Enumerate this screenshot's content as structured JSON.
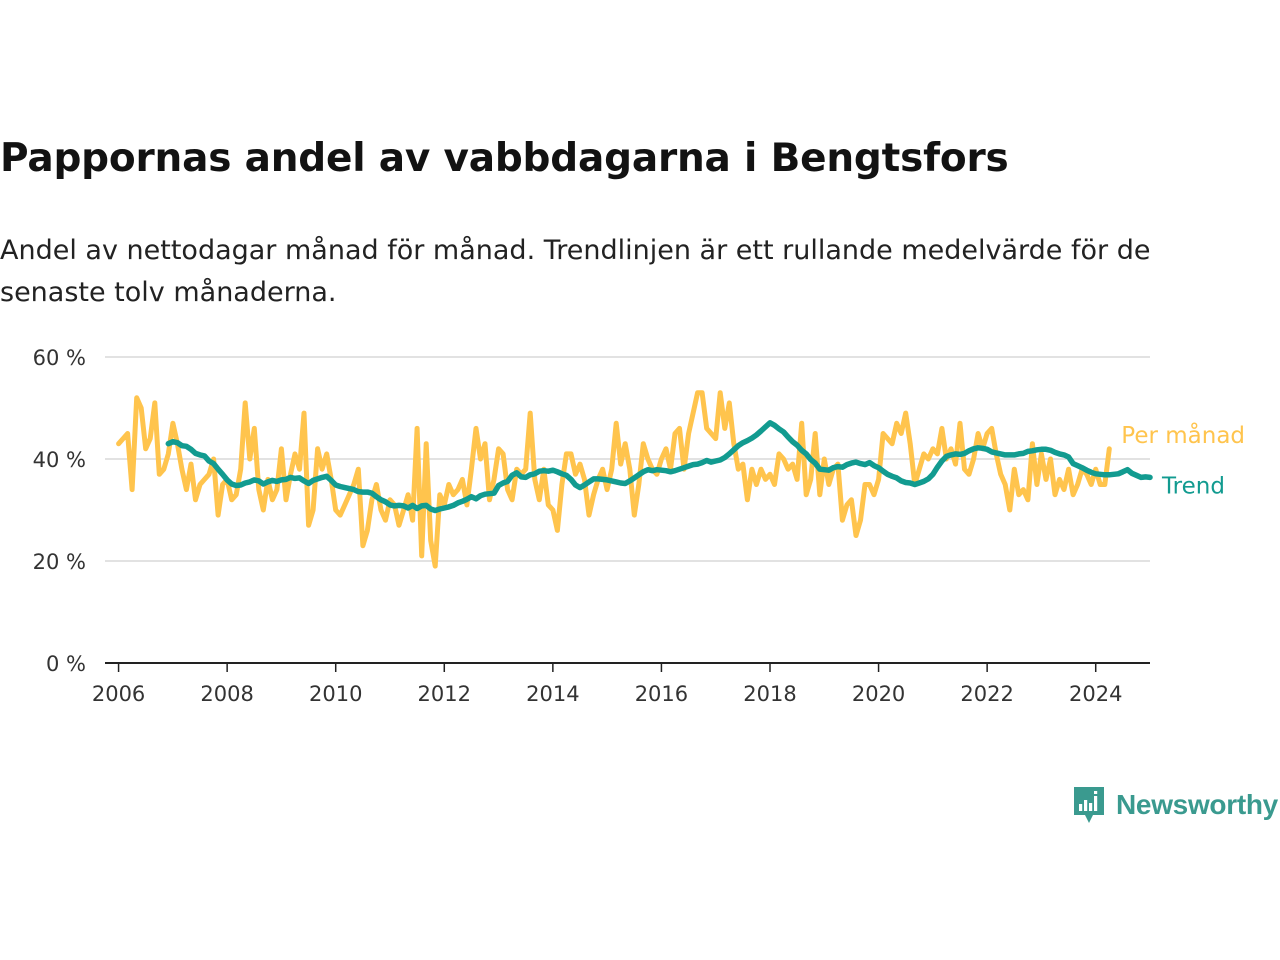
{
  "title": "Pappornas andel av vabbdagarna i Bengtsfors",
  "subtitle": "Andel av nettodagar månad för månad. Trendlinjen är ett rullande medelvärde för de senaste tolv månaderna.",
  "brand": {
    "name": "Newsworthy",
    "icon": "newsworthy-logo-icon",
    "color": "#3a9a8f"
  },
  "colors": {
    "per_month": "#ffc44d",
    "trend": "#129b90",
    "grid": "#d9d9d9",
    "axis": "#222222"
  },
  "chart_data": {
    "type": "line",
    "title": "Pappornas andel av vabbdagarna i Bengtsfors",
    "subtitle": "Andel av nettodagar månad för månad. Trendlinjen är ett rullande medelvärde för de senaste tolv månaderna.",
    "xlabel": "",
    "ylabel": "",
    "x_range": [
      "2005-10",
      "2025-01"
    ],
    "ylim": [
      0,
      60
    ],
    "y_ticks": [
      {
        "value": 0,
        "label": "0 %"
      },
      {
        "value": 20,
        "label": "20 %"
      },
      {
        "value": 40,
        "label": "40 %"
      },
      {
        "value": 60,
        "label": "60 %"
      }
    ],
    "x_ticks": [
      "2006",
      "2008",
      "2010",
      "2012",
      "2014",
      "2016",
      "2018",
      "2020",
      "2022",
      "2024"
    ],
    "grid": true,
    "legend": "direct labels at right end of lines",
    "series": [
      {
        "name": "Per månad",
        "start": "2006-01",
        "step": "month",
        "values": [
          43,
          44,
          45,
          34,
          52,
          50,
          42,
          44,
          51,
          37,
          38,
          41,
          47,
          43,
          38,
          34,
          39,
          32,
          35,
          36,
          37,
          40,
          29,
          35,
          36,
          32,
          33,
          38,
          51,
          40,
          46,
          34,
          30,
          36,
          32,
          34,
          42,
          32,
          37,
          41,
          38,
          49,
          27,
          30,
          42,
          38,
          41,
          36,
          30,
          29,
          31,
          33,
          35,
          38,
          23,
          26,
          32,
          35,
          30,
          28,
          32,
          31,
          27,
          30,
          33,
          28,
          46,
          21,
          43,
          24,
          19,
          33,
          31,
          35,
          33,
          34,
          36,
          31,
          38,
          46,
          40,
          43,
          32,
          36,
          42,
          41,
          34,
          32,
          38,
          37,
          38,
          49,
          36,
          32,
          38,
          31,
          30,
          26,
          35,
          41,
          41,
          37,
          39,
          36,
          29,
          33,
          36,
          38,
          34,
          38,
          47,
          39,
          43,
          38,
          29,
          35,
          43,
          40,
          38,
          37,
          40,
          42,
          38,
          45,
          46,
          38,
          45,
          49,
          53,
          53,
          46,
          45,
          44,
          53,
          46,
          51,
          43,
          38,
          39,
          32,
          38,
          35,
          38,
          36,
          37,
          35,
          41,
          40,
          38,
          39,
          36,
          47,
          33,
          36,
          45,
          33,
          40,
          35,
          38,
          39,
          28,
          31,
          32,
          25,
          28,
          35,
          35,
          33,
          36,
          45,
          44,
          43,
          47,
          45,
          49,
          43,
          35,
          38,
          41,
          40,
          42,
          41,
          46,
          40,
          42,
          39,
          47,
          38,
          37,
          40,
          45,
          42,
          45,
          46,
          41,
          37,
          35,
          30,
          38,
          33,
          34,
          32,
          43,
          35,
          41,
          36,
          40,
          33,
          36,
          34,
          38,
          33,
          35,
          38,
          37,
          35,
          38,
          35,
          35,
          42
        ]
      },
      {
        "name": "Trend",
        "start": "2006-12",
        "step": "month",
        "values": [
          43,
          43.4,
          43.2,
          42.6,
          42.5,
          41.9,
          41.1,
          40.8,
          40.6,
          39.6,
          39.1,
          38.0,
          37.0,
          35.9,
          35.1,
          34.8,
          34.9,
          35.3,
          35.5,
          35.9,
          35.7,
          35.1,
          35.5,
          35.8,
          35.6,
          35.9,
          36.0,
          36.4,
          36.2,
          36.3,
          35.7,
          35.2,
          35.8,
          36.1,
          36.4,
          36.6,
          35.8,
          34.9,
          34.6,
          34.4,
          34.2,
          34.0,
          33.6,
          33.5,
          33.5,
          33.3,
          32.6,
          32.0,
          31.6,
          31.0,
          30.8,
          30.9,
          30.8,
          30.4,
          30.9,
          30.3,
          30.8,
          30.9,
          30.2,
          29.9,
          30.2,
          30.4,
          30.6,
          30.9,
          31.4,
          31.7,
          32.1,
          32.6,
          32.2,
          32.8,
          33.1,
          33.2,
          33.3,
          34.8,
          35.3,
          35.6,
          36.8,
          37.3,
          36.5,
          36.4,
          36.9,
          37.1,
          37.6,
          37.7,
          37.6,
          37.8,
          37.5,
          37.1,
          36.8,
          36.0,
          34.9,
          34.4,
          34.9,
          35.5,
          36.1,
          36.1,
          36.0,
          35.9,
          35.7,
          35.5,
          35.3,
          35.2,
          35.7,
          36.3,
          36.9,
          37.5,
          37.9,
          37.7,
          37.9,
          37.8,
          37.7,
          37.5,
          37.7,
          38.0,
          38.3,
          38.6,
          38.9,
          39.0,
          39.3,
          39.7,
          39.4,
          39.6,
          39.8,
          40.3,
          41.0,
          41.8,
          42.6,
          43.2,
          43.6,
          44.1,
          44.7,
          45.5,
          46.3,
          47.1,
          46.6,
          45.9,
          45.3,
          44.3,
          43.4,
          42.7,
          41.7,
          41.0,
          39.9,
          39.2,
          38.0,
          37.9,
          37.8,
          38.3,
          38.5,
          38.4,
          38.9,
          39.2,
          39.4,
          39.1,
          38.9,
          39.3,
          38.7,
          38.3,
          37.6,
          37.0,
          36.6,
          36.3,
          35.7,
          35.4,
          35.3,
          35.0,
          35.3,
          35.6,
          36.1,
          37.0,
          38.4,
          39.6,
          40.5,
          40.8,
          41.0,
          40.9,
          41.1,
          41.6,
          42.0,
          42.2,
          42.1,
          41.9,
          41.4,
          41.2,
          41.0,
          40.8,
          40.8,
          40.8,
          41.0,
          41.1,
          41.5,
          41.6,
          41.8,
          41.9,
          41.9,
          41.7,
          41.3,
          41.0,
          40.8,
          40.4,
          39.1,
          38.7,
          38.3,
          37.8,
          37.4,
          37.1,
          37.0,
          36.9,
          36.9,
          37.0,
          37.1,
          37.5,
          37.9,
          37.2,
          36.8,
          36.4,
          36.5,
          36.4
        ]
      }
    ]
  }
}
